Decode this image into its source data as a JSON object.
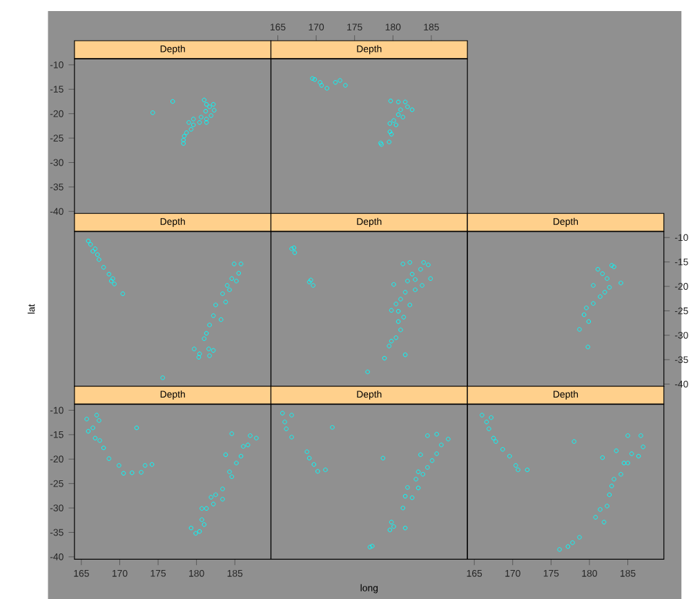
{
  "chart_data": [
    {
      "type": "scatter",
      "title": "Depth",
      "color": "#00ffff",
      "marker": "circle",
      "xlim": [
        164.1,
        189.7
      ],
      "ylim": [
        -40.5,
        -8.8
      ],
      "xticks": [
        165,
        170,
        175,
        180,
        185
      ],
      "yticks": [
        -40,
        -35,
        -30,
        -25,
        -20,
        -15,
        -10
      ],
      "tick_labels": "y",
      "x": [
        174.3,
        176.9,
        181.0,
        181.7,
        182.3,
        181.9,
        181.3,
        180.4,
        179.6,
        179.3,
        178.7,
        178.4,
        178.3,
        178.3,
        180.6,
        181.2,
        181.3,
        179.6,
        181.3,
        182.2,
        179.0
      ],
      "values": [
        -19.8,
        -17.5,
        -17.2,
        -18.6,
        -19.3,
        -20.4,
        -21.1,
        -21.8,
        -22.3,
        -23.2,
        -23.9,
        -24.6,
        -26.1,
        -25.4,
        -20.7,
        -19.5,
        -18.1,
        -21.1,
        -21.8,
        -18.1,
        -21.8
      ]
    },
    {
      "type": "scatter",
      "title": "Depth",
      "color": "#00ffff",
      "marker": "circle",
      "xlim": [
        164.1,
        189.7
      ],
      "ylim": [
        -40.5,
        -8.8
      ],
      "xticks": [
        165,
        170,
        175,
        180,
        185
      ],
      "yticks": [
        -40,
        -35,
        -30,
        -25,
        -20,
        -15,
        -10
      ],
      "tick_labels": "x",
      "x": [
        169.5,
        169.8,
        170.5,
        170.7,
        171.4,
        172.5,
        173.1,
        173.8,
        179.7,
        180.7,
        181.6,
        181.9,
        182.5,
        181.0,
        180.7,
        181.3,
        180.1,
        179.6,
        180.4,
        179.6,
        179.8,
        179.5,
        178.5,
        178.4
      ],
      "values": [
        -12.8,
        -13.0,
        -13.6,
        -14.2,
        -14.8,
        -13.6,
        -13.2,
        -14.2,
        -17.4,
        -17.6,
        -17.6,
        -18.6,
        -19.2,
        -19.2,
        -20.2,
        -20.7,
        -21.4,
        -22.0,
        -22.3,
        -23.7,
        -24.2,
        -25.8,
        -26.3,
        -26.0
      ]
    },
    {
      "type": "scatter",
      "title": "Depth",
      "color": "#00ffff",
      "marker": "circle",
      "xlim": [
        164.1,
        189.7
      ],
      "ylim": [
        -40.5,
        -8.8
      ],
      "xticks": [
        165,
        170,
        175,
        180,
        185
      ],
      "yticks": [
        -40,
        -35,
        -30,
        -25,
        -20,
        -15,
        -10
      ],
      "tick_labels": false,
      "ylabel": "lat",
      "x": [
        165.9,
        166.2,
        166.8,
        167.1,
        167.3,
        167.9,
        168.6,
        169.1,
        169.3,
        170.4,
        166.5,
        168.9,
        185.8,
        184.9,
        185.5,
        184.6,
        184.0,
        183.4,
        182.5,
        183.8,
        182.2,
        183.2,
        181.7,
        181.3,
        181.0,
        179.7,
        180.4,
        181.6,
        182.2,
        181.7,
        180.3,
        175.6,
        185.2,
        184.3
      ],
      "values": [
        -10.7,
        -11.4,
        -12.3,
        -13.5,
        -14.5,
        -16.1,
        -17.5,
        -18.4,
        -19.5,
        -21.5,
        -12.8,
        -18.9,
        -15.4,
        -15.4,
        -17.3,
        -18.4,
        -19.8,
        -21.5,
        -23.8,
        -23.2,
        -26.0,
        -26.8,
        -27.9,
        -29.6,
        -30.7,
        -32.8,
        -33.8,
        -32.8,
        -33.1,
        -34.2,
        -34.5,
        -38.7,
        -18.9,
        -20.7
      ]
    },
    {
      "type": "scatter",
      "title": "Depth",
      "color": "#00ffff",
      "marker": "circle",
      "xlim": [
        164.1,
        189.7
      ],
      "ylim": [
        -40.5,
        -8.8
      ],
      "xticks": [
        165,
        170,
        175,
        180,
        185
      ],
      "yticks": [
        -40,
        -35,
        -30,
        -25,
        -20,
        -15,
        -10
      ],
      "tick_labels": false,
      "x": [
        167.1,
        166.8,
        167.2,
        169.3,
        169.6,
        169.1,
        180.1,
        181.3,
        182.2,
        184.0,
        184.6,
        184.9,
        183.8,
        182.9,
        182.5,
        181.9,
        181.6,
        181.0,
        182.2,
        180.7,
        179.8,
        181.4,
        180.7,
        181.0,
        180.4,
        179.8,
        179.5,
        181.6,
        178.9,
        176.7,
        183.6,
        182.9,
        180.4
      ],
      "values": [
        -12.1,
        -12.3,
        -13.1,
        -18.7,
        -19.8,
        -19.1,
        -19.6,
        -15.4,
        -15.1,
        -15.1,
        -15.6,
        -18.4,
        -19.8,
        -20.7,
        -17.5,
        -18.9,
        -21.2,
        -22.6,
        -23.8,
        -25.1,
        -24.9,
        -26.3,
        -27.2,
        -28.9,
        -30.5,
        -31.2,
        -32.2,
        -34.0,
        -34.7,
        -37.5,
        -16.5,
        -18.6,
        -23.6
      ]
    },
    {
      "type": "scatter",
      "title": "Depth",
      "color": "#00ffff",
      "marker": "circle",
      "xlim": [
        164.1,
        189.7
      ],
      "ylim": [
        -40.5,
        -8.8
      ],
      "xticks": [
        165,
        170,
        175,
        180,
        185
      ],
      "yticks": [
        -40,
        -35,
        -30,
        -25,
        -20,
        -15,
        -10
      ],
      "tick_labels": "y",
      "x": [
        181.1,
        181.7,
        182.9,
        183.2,
        184.1,
        182.6,
        180.5,
        181.4,
        180.5,
        179.6,
        179.3,
        179.9,
        178.7,
        179.8,
        182.0,
        182.3
      ],
      "values": [
        -16.5,
        -17.4,
        -15.7,
        -16.0,
        -19.3,
        -20.2,
        -19.8,
        -22.1,
        -23.5,
        -24.4,
        -25.8,
        -27.2,
        -28.8,
        -32.4,
        -21.2,
        -18.4
      ]
    },
    {
      "type": "scatter",
      "title": "Depth",
      "color": "#00ffff",
      "marker": "circle",
      "xlim": [
        164.1,
        189.7
      ],
      "ylim": [
        -40.5,
        -8.8
      ],
      "xticks": [
        165,
        170,
        175,
        180,
        185
      ],
      "yticks": [
        -40,
        -35,
        -30,
        -25,
        -20,
        -15,
        -10
      ],
      "x": [
        165.7,
        165.9,
        167.0,
        167.3,
        166.5,
        166.8,
        167.4,
        167.9,
        168.6,
        169.9,
        170.5,
        171.6,
        172.2,
        172.8,
        173.3,
        174.2,
        184.6,
        187.0,
        187.8,
        186.7,
        185.8,
        185.2,
        183.8,
        184.3,
        184.6,
        183.4,
        182.5,
        181.9,
        183.4,
        182.2,
        181.3,
        180.7,
        180.7,
        181.0,
        179.3,
        179.9,
        180.4,
        186.1
      ],
      "values": [
        -11.8,
        -14.3,
        -11.0,
        -12.1,
        -13.6,
        -15.7,
        -16.2,
        -17.7,
        -19.9,
        -21.3,
        -22.9,
        -22.8,
        -13.6,
        -22.7,
        -21.3,
        -21.1,
        -14.8,
        -15.2,
        -15.7,
        -17.1,
        -19.4,
        -20.8,
        -19.1,
        -22.6,
        -23.6,
        -26.1,
        -27.3,
        -27.8,
        -28.2,
        -29.2,
        -30.1,
        -30.1,
        -32.4,
        -33.4,
        -34.1,
        -35.2,
        -34.8,
        -17.4
      ]
    },
    {
      "type": "scatter",
      "title": "Depth",
      "color": "#00ffff",
      "marker": "circle",
      "xlim": [
        164.1,
        189.7
      ],
      "ylim": [
        -40.5,
        -8.8
      ],
      "xticks": [
        165,
        170,
        175,
        180,
        185
      ],
      "yticks": [
        -40,
        -35,
        -30,
        -25,
        -20,
        -15,
        -10
      ],
      "tick_labels": false,
      "xlabel": "long",
      "x": [
        165.6,
        165.9,
        166.8,
        166.1,
        166.8,
        168.8,
        169.1,
        169.7,
        170.2,
        171.2,
        172.1,
        178.7,
        184.5,
        185.7,
        187.2,
        186.3,
        185.7,
        185.1,
        183.6,
        184.5,
        183.3,
        183.0,
        183.3,
        181.9,
        181.6,
        182.5,
        181.3,
        181.6,
        179.8,
        179.6,
        180.1,
        177.0,
        177.3,
        183.9
      ],
      "values": [
        -10.6,
        -12.4,
        -11.0,
        -13.8,
        -15.5,
        -18.5,
        -19.8,
        -21.1,
        -22.5,
        -22.2,
        -13.5,
        -19.8,
        -15.2,
        -14.9,
        -15.9,
        -17.1,
        -18.9,
        -20.3,
        -19.1,
        -21.7,
        -22.6,
        -24.1,
        -25.9,
        -25.8,
        -27.6,
        -27.9,
        -30.0,
        -34.1,
        -32.9,
        -34.5,
        -33.8,
        -38.0,
        -37.8,
        -23.1
      ]
    },
    {
      "type": "scatter",
      "title": "Depth",
      "color": "#00ffff",
      "marker": "circle",
      "xlim": [
        164.1,
        189.7
      ],
      "ylim": [
        -40.5,
        -8.8
      ],
      "xticks": [
        165,
        170,
        175,
        180,
        185
      ],
      "yticks": [
        -40,
        -35,
        -30,
        -25,
        -20,
        -15,
        -10
      ],
      "tick_labels": "x",
      "x": [
        166.0,
        166.6,
        167.2,
        166.9,
        167.5,
        167.8,
        168.7,
        169.6,
        170.4,
        170.7,
        171.9,
        178.0,
        181.7,
        183.5,
        185.0,
        186.7,
        187.0,
        186.4,
        185.5,
        185.0,
        184.1,
        183.2,
        182.9,
        182.6,
        182.3,
        181.4,
        180.8,
        181.9,
        178.7,
        177.8,
        177.2,
        176.1,
        184.5
      ],
      "values": [
        -11.0,
        -12.4,
        -11.5,
        -13.8,
        -15.7,
        -16.4,
        -18.0,
        -19.4,
        -21.3,
        -22.2,
        -22.2,
        -16.4,
        -19.7,
        -18.3,
        -15.2,
        -15.2,
        -17.5,
        -19.4,
        -18.9,
        -20.8,
        -23.1,
        -24.1,
        -25.5,
        -27.3,
        -29.6,
        -30.3,
        -31.9,
        -32.9,
        -36.0,
        -37.1,
        -37.9,
        -38.5,
        -20.8
      ]
    }
  ]
}
